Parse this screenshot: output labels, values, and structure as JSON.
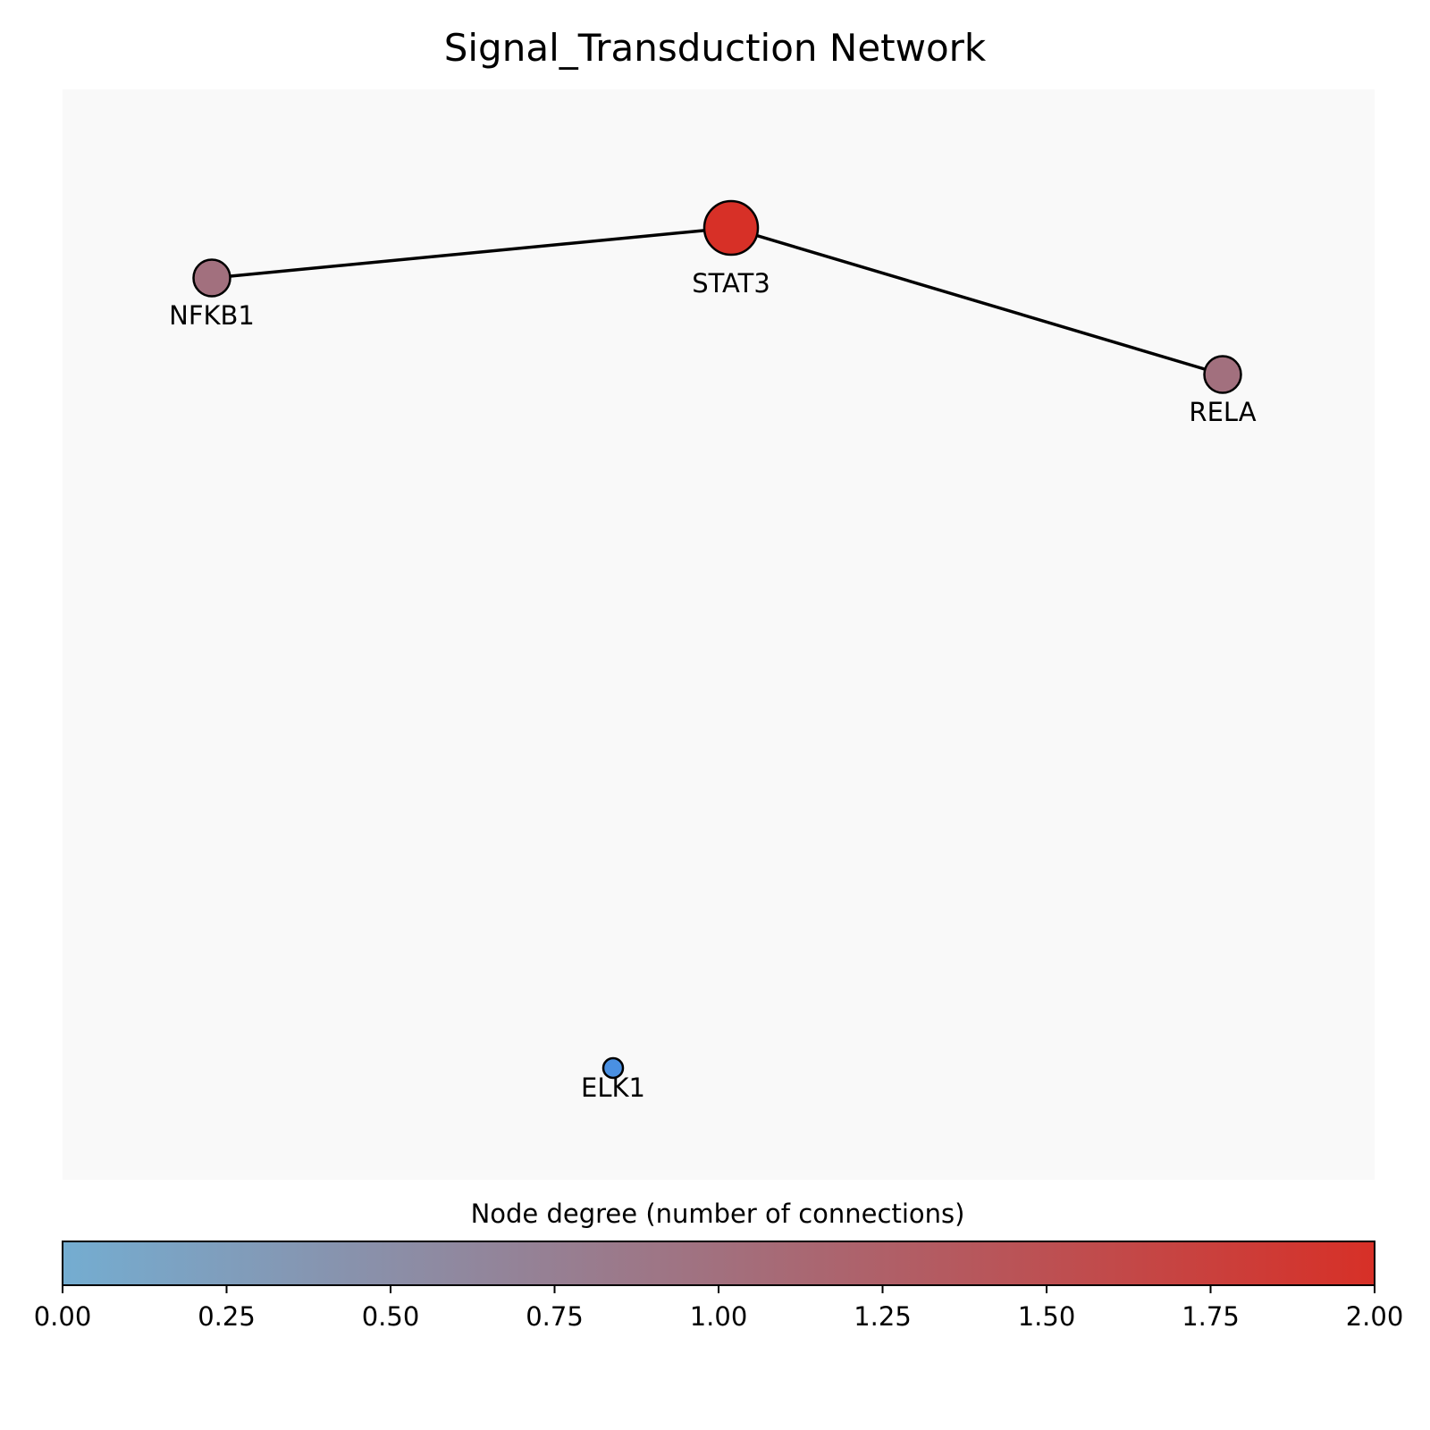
{
  "title": "Signal_Transduction Network",
  "nodes": [
    {
      "id": "stat3",
      "label": "STAT3",
      "degree": 2
    },
    {
      "id": "nfkb1",
      "label": "NFKB1",
      "degree": 1
    },
    {
      "id": "rela",
      "label": "RELA",
      "degree": 1
    },
    {
      "id": "elk1",
      "label": "ELK1",
      "degree": 0
    }
  ],
  "edges": [
    {
      "source": "nfkb1",
      "target": "stat3"
    },
    {
      "source": "stat3",
      "target": "rela"
    }
  ],
  "colorbar": {
    "label": "Node degree (number of connections)",
    "min": 0,
    "max": 2,
    "ticks": [
      "0.00",
      "0.25",
      "0.50",
      "0.75",
      "1.00",
      "1.25",
      "1.50",
      "1.75",
      "2.00"
    ],
    "color_low": "#74add1",
    "color_mid": "#a2707e",
    "color_high": "#d73027"
  },
  "colors": {
    "plot_background": "#f9f9f9",
    "edge": "#000000",
    "node_outline": "#000000",
    "elk1_fill": "#4a90e2"
  }
}
